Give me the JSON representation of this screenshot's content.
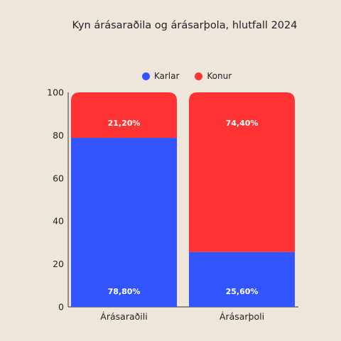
{
  "chart_data": {
    "type": "bar",
    "stacked": true,
    "title": "Kyn árásaraðila og árásarþola, hlutfall 2024",
    "categories": [
      "Árásaraðili",
      "Árásarþoli"
    ],
    "series": [
      {
        "name": "Karlar",
        "color": "#3355ff",
        "values": [
          78.8,
          25.6
        ],
        "labels": [
          "78,80%",
          "25,60%"
        ]
      },
      {
        "name": "Konur",
        "color": "#ff3333",
        "values": [
          21.2,
          74.4
        ],
        "labels": [
          "21,20%",
          "74,40%"
        ]
      }
    ],
    "ylim": [
      0,
      100
    ],
    "yticks": [
      "0",
      "20",
      "40",
      "60",
      "80",
      "100"
    ],
    "legend_position": "top",
    "grid": false
  }
}
